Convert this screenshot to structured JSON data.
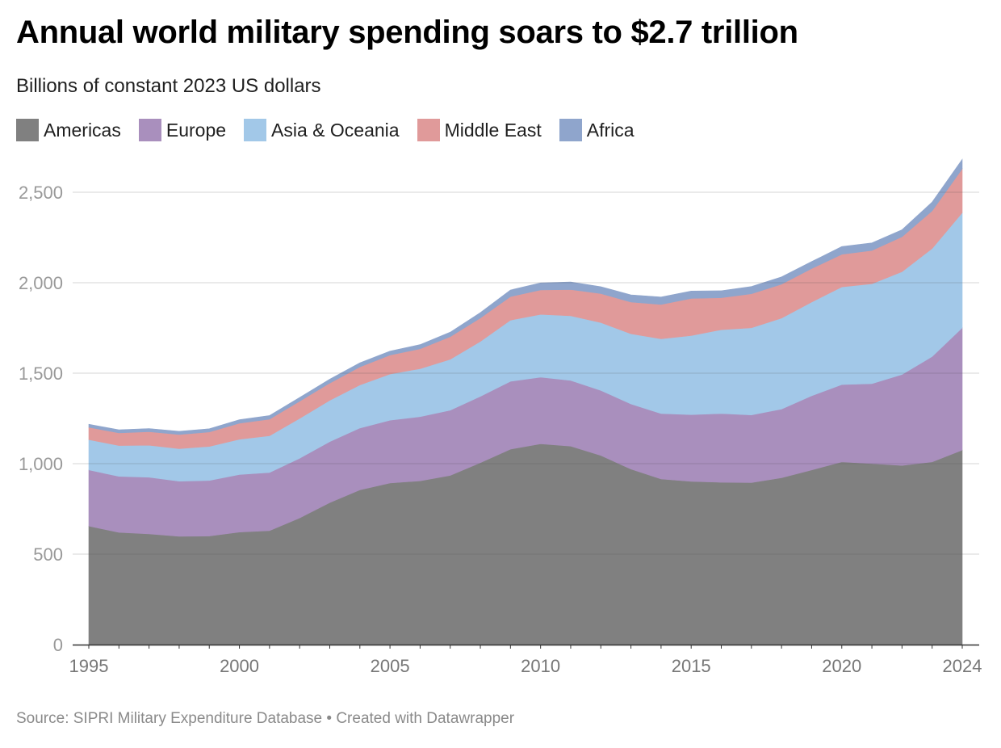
{
  "title": "Annual world military spending soars to $2.7 trillion",
  "subtitle": "Billions of constant 2023 US dollars",
  "source": "Source: SIPRI Military Expenditure Database • Created with Datawrapper",
  "chart_data": {
    "type": "area",
    "stacked": true,
    "x": [
      1995,
      1996,
      1997,
      1998,
      1999,
      2000,
      2001,
      2002,
      2003,
      2004,
      2005,
      2006,
      2007,
      2008,
      2009,
      2010,
      2011,
      2012,
      2013,
      2014,
      2015,
      2016,
      2017,
      2018,
      2019,
      2020,
      2021,
      2022,
      2023,
      2024
    ],
    "series": [
      {
        "name": "Americas",
        "color": "#808080",
        "values": [
          655,
          620,
          612,
          598,
          600,
          622,
          630,
          700,
          785,
          855,
          893,
          905,
          935,
          1005,
          1080,
          1110,
          1097,
          1045,
          970,
          915,
          902,
          897,
          895,
          922,
          965,
          1010,
          1000,
          990,
          1010,
          1075
        ]
      },
      {
        "name": "Europe",
        "color": "#a98fbd",
        "values": [
          310,
          310,
          313,
          305,
          307,
          318,
          321,
          330,
          337,
          342,
          347,
          355,
          360,
          367,
          375,
          368,
          363,
          360,
          360,
          362,
          369,
          380,
          374,
          380,
          410,
          427,
          442,
          503,
          582,
          676
        ]
      },
      {
        "name": "Asia & Oceania",
        "color": "#a2c8e8",
        "values": [
          168,
          170,
          177,
          180,
          188,
          195,
          203,
          220,
          228,
          238,
          255,
          265,
          282,
          303,
          338,
          347,
          357,
          375,
          388,
          413,
          437,
          463,
          482,
          502,
          518,
          540,
          552,
          568,
          597,
          636
        ]
      },
      {
        "name": "Middle East",
        "color": "#e09a9a",
        "values": [
          68,
          70,
          75,
          78,
          80,
          88,
          92,
          95,
          95,
          100,
          105,
          110,
          125,
          130,
          130,
          135,
          145,
          160,
          175,
          190,
          205,
          177,
          188,
          188,
          185,
          180,
          184,
          193,
          208,
          243
        ]
      },
      {
        "name": "Africa",
        "color": "#8fa5cc",
        "values": [
          17,
          17,
          17,
          18,
          18,
          20,
          20,
          21,
          22,
          22,
          22,
          23,
          25,
          30,
          37,
          39,
          42,
          38,
          40,
          41,
          41,
          39,
          40,
          40,
          39,
          43,
          42,
          39,
          49,
          52
        ]
      }
    ],
    "xticks": [
      "1995",
      "2000",
      "2005",
      "2010",
      "2015",
      "2020",
      "2024"
    ],
    "yticks": [
      "0",
      "500",
      "1,000",
      "1,500",
      "2,000",
      "2,500"
    ],
    "ylim": [
      0,
      2700
    ],
    "grid": true,
    "legend": "top-left"
  }
}
